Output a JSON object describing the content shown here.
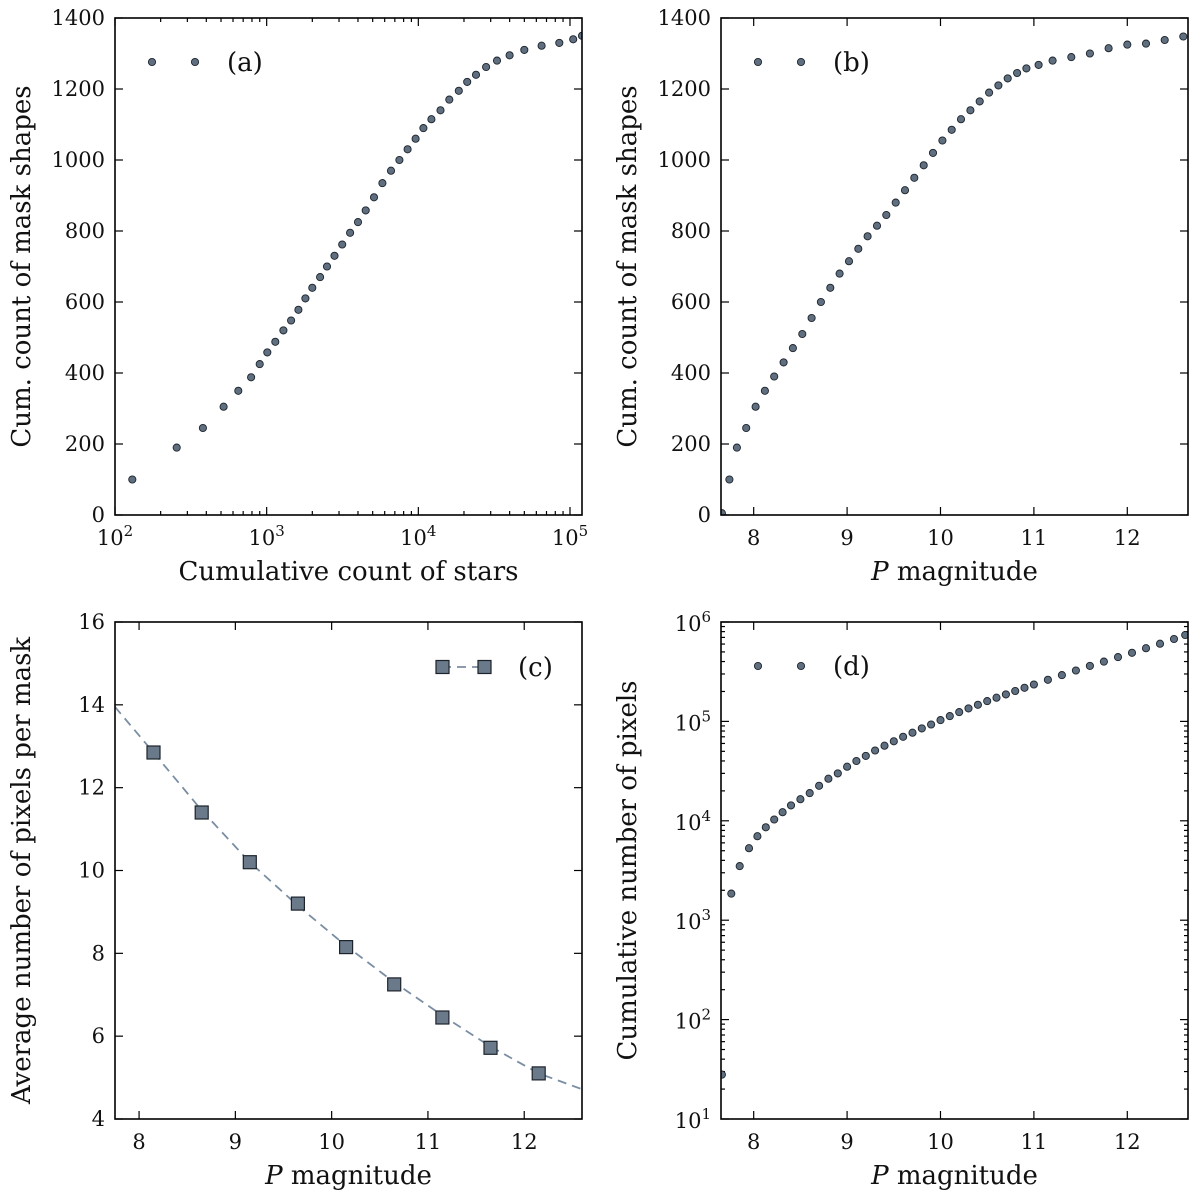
{
  "chart_data": [
    {
      "id": "a",
      "type": "scatter",
      "legend": "(a)",
      "legend_position": "top-left",
      "xlabel": "Cumulative count of stars",
      "ylabel": "Cum. count of mask shapes",
      "xscale": "log",
      "xlim": [
        100,
        120000
      ],
      "ylim": [
        0,
        1400
      ],
      "xticks": [
        {
          "v": 100,
          "b": "10",
          "e": "2"
        },
        {
          "v": 1000,
          "b": "10",
          "e": "3"
        },
        {
          "v": 10000,
          "b": "10",
          "e": "4"
        },
        {
          "v": 100000,
          "b": "10",
          "e": "5"
        }
      ],
      "yticks": [
        {
          "v": 0,
          "t": "0"
        },
        {
          "v": 200,
          "t": "200"
        },
        {
          "v": 400,
          "t": "400"
        },
        {
          "v": 600,
          "t": "600"
        },
        {
          "v": 800,
          "t": "800"
        },
        {
          "v": 1000,
          "t": "1000"
        },
        {
          "v": 1200,
          "t": "1200"
        },
        {
          "v": 1400,
          "t": "1400"
        }
      ],
      "series": [
        {
          "name": "(a)",
          "style": "points",
          "x": [
            130,
            255,
            380,
            520,
            650,
            790,
            900,
            1010,
            1140,
            1290,
            1450,
            1620,
            1800,
            2000,
            2250,
            2500,
            2800,
            3150,
            3550,
            4000,
            4500,
            5100,
            5800,
            6600,
            7500,
            8500,
            9600,
            10800,
            12200,
            14000,
            16000,
            18500,
            21000,
            24000,
            28000,
            33000,
            40000,
            50000,
            65000,
            85000,
            105000,
            120000
          ],
          "y": [
            100,
            190,
            245,
            305,
            350,
            388,
            425,
            458,
            488,
            520,
            548,
            578,
            610,
            640,
            670,
            700,
            730,
            762,
            795,
            825,
            858,
            895,
            935,
            970,
            1000,
            1030,
            1060,
            1090,
            1115,
            1140,
            1170,
            1195,
            1220,
            1240,
            1262,
            1280,
            1295,
            1310,
            1322,
            1330,
            1340,
            1350
          ]
        }
      ]
    },
    {
      "id": "b",
      "type": "scatter",
      "legend": "(b)",
      "legend_position": "top-left",
      "xlabel": "P magnitude",
      "ylabel": "Cum. count of mask shapes",
      "xlim": [
        7.65,
        12.65
      ],
      "ylim": [
        0,
        1400
      ],
      "xticks": [
        {
          "v": 8,
          "t": "8"
        },
        {
          "v": 9,
          "t": "9"
        },
        {
          "v": 10,
          "t": "10"
        },
        {
          "v": 11,
          "t": "11"
        },
        {
          "v": 12,
          "t": "12"
        }
      ],
      "yticks": [
        {
          "v": 0,
          "t": "0"
        },
        {
          "v": 200,
          "t": "200"
        },
        {
          "v": 400,
          "t": "400"
        },
        {
          "v": 600,
          "t": "600"
        },
        {
          "v": 800,
          "t": "800"
        },
        {
          "v": 1000,
          "t": "1000"
        },
        {
          "v": 1200,
          "t": "1200"
        },
        {
          "v": 1400,
          "t": "1400"
        }
      ],
      "series": [
        {
          "name": "(b)",
          "style": "points",
          "x": [
            7.66,
            7.74,
            7.82,
            7.92,
            8.02,
            8.12,
            8.22,
            8.32,
            8.42,
            8.52,
            8.62,
            8.72,
            8.82,
            8.92,
            9.02,
            9.12,
            9.22,
            9.32,
            9.42,
            9.52,
            9.62,
            9.72,
            9.82,
            9.92,
            10.02,
            10.12,
            10.22,
            10.32,
            10.42,
            10.52,
            10.62,
            10.72,
            10.82,
            10.92,
            11.05,
            11.2,
            11.4,
            11.6,
            11.8,
            12.0,
            12.2,
            12.4,
            12.6
          ],
          "y": [
            5,
            100,
            190,
            245,
            305,
            350,
            390,
            430,
            470,
            510,
            555,
            600,
            640,
            680,
            715,
            750,
            785,
            815,
            845,
            880,
            915,
            950,
            985,
            1020,
            1055,
            1085,
            1115,
            1140,
            1165,
            1190,
            1210,
            1230,
            1245,
            1258,
            1268,
            1280,
            1290,
            1300,
            1315,
            1325,
            1328,
            1338,
            1348
          ]
        }
      ]
    },
    {
      "id": "c",
      "type": "line",
      "legend": "(c)",
      "legend_position": "top-right",
      "xlabel": "P magnitude",
      "ylabel": "Average number of pixels per mask",
      "xlim": [
        7.75,
        12.6
      ],
      "ylim": [
        4,
        16
      ],
      "xticks": [
        {
          "v": 8,
          "t": "8"
        },
        {
          "v": 9,
          "t": "9"
        },
        {
          "v": 10,
          "t": "10"
        },
        {
          "v": 11,
          "t": "11"
        },
        {
          "v": 12,
          "t": "12"
        }
      ],
      "yticks": [
        {
          "v": 4,
          "t": "4"
        },
        {
          "v": 6,
          "t": "6"
        },
        {
          "v": 8,
          "t": "8"
        },
        {
          "v": 10,
          "t": "10"
        },
        {
          "v": 12,
          "t": "12"
        },
        {
          "v": 14,
          "t": "14"
        },
        {
          "v": 16,
          "t": "16"
        }
      ],
      "series": [
        {
          "name": "(c)",
          "style": "squares",
          "x": [
            8.15,
            8.65,
            9.15,
            9.65,
            10.15,
            10.65,
            11.15,
            11.65,
            12.15
          ],
          "y": [
            12.85,
            11.4,
            10.2,
            9.2,
            8.15,
            7.25,
            6.45,
            5.72,
            5.1
          ]
        },
        {
          "name": "fit",
          "style": "dashed",
          "x": [
            7.75,
            8.15,
            8.65,
            9.15,
            9.65,
            10.15,
            10.65,
            11.15,
            11.65,
            12.15,
            12.6
          ],
          "y": [
            13.95,
            12.85,
            11.45,
            10.2,
            9.15,
            8.18,
            7.3,
            6.5,
            5.75,
            5.1,
            4.72
          ]
        }
      ]
    },
    {
      "id": "d",
      "type": "scatter",
      "legend": "(d)",
      "legend_position": "top-left",
      "xlabel": "P magnitude",
      "ylabel": "Cumulative number of pixels",
      "yscale": "log",
      "xlim": [
        7.65,
        12.65
      ],
      "ylim": [
        10,
        1000000
      ],
      "xticks": [
        {
          "v": 8,
          "t": "8"
        },
        {
          "v": 9,
          "t": "9"
        },
        {
          "v": 10,
          "t": "10"
        },
        {
          "v": 11,
          "t": "11"
        },
        {
          "v": 12,
          "t": "12"
        }
      ],
      "yticks": [
        {
          "v": 10,
          "b": "10",
          "e": "1"
        },
        {
          "v": 100,
          "b": "10",
          "e": "2"
        },
        {
          "v": 1000,
          "b": "10",
          "e": "3"
        },
        {
          "v": 10000,
          "b": "10",
          "e": "4"
        },
        {
          "v": 100000,
          "b": "10",
          "e": "5"
        },
        {
          "v": 1000000,
          "b": "10",
          "e": "6"
        }
      ],
      "series": [
        {
          "name": "(d)",
          "style": "points",
          "x": [
            7.66,
            7.76,
            7.85,
            7.95,
            8.04,
            8.13,
            8.22,
            8.31,
            8.4,
            8.5,
            8.6,
            8.7,
            8.8,
            8.9,
            9.0,
            9.1,
            9.2,
            9.3,
            9.4,
            9.5,
            9.6,
            9.7,
            9.8,
            9.9,
            10.0,
            10.1,
            10.2,
            10.3,
            10.4,
            10.5,
            10.6,
            10.7,
            10.8,
            10.9,
            11.0,
            11.15,
            11.3,
            11.45,
            11.6,
            11.75,
            11.9,
            12.05,
            12.2,
            12.35,
            12.5,
            12.62
          ],
          "y": [
            28,
            1850,
            3500,
            5300,
            7000,
            8600,
            10300,
            12200,
            14300,
            16500,
            19000,
            22500,
            26500,
            30000,
            35000,
            40000,
            45000,
            51000,
            57000,
            63000,
            70000,
            77000,
            85000,
            93000,
            103000,
            113000,
            124000,
            135000,
            147000,
            160000,
            173000,
            187000,
            202000,
            218000,
            235000,
            262000,
            292000,
            325000,
            362000,
            400000,
            443000,
            490000,
            545000,
            605000,
            675000,
            740000
          ]
        }
      ]
    }
  ]
}
